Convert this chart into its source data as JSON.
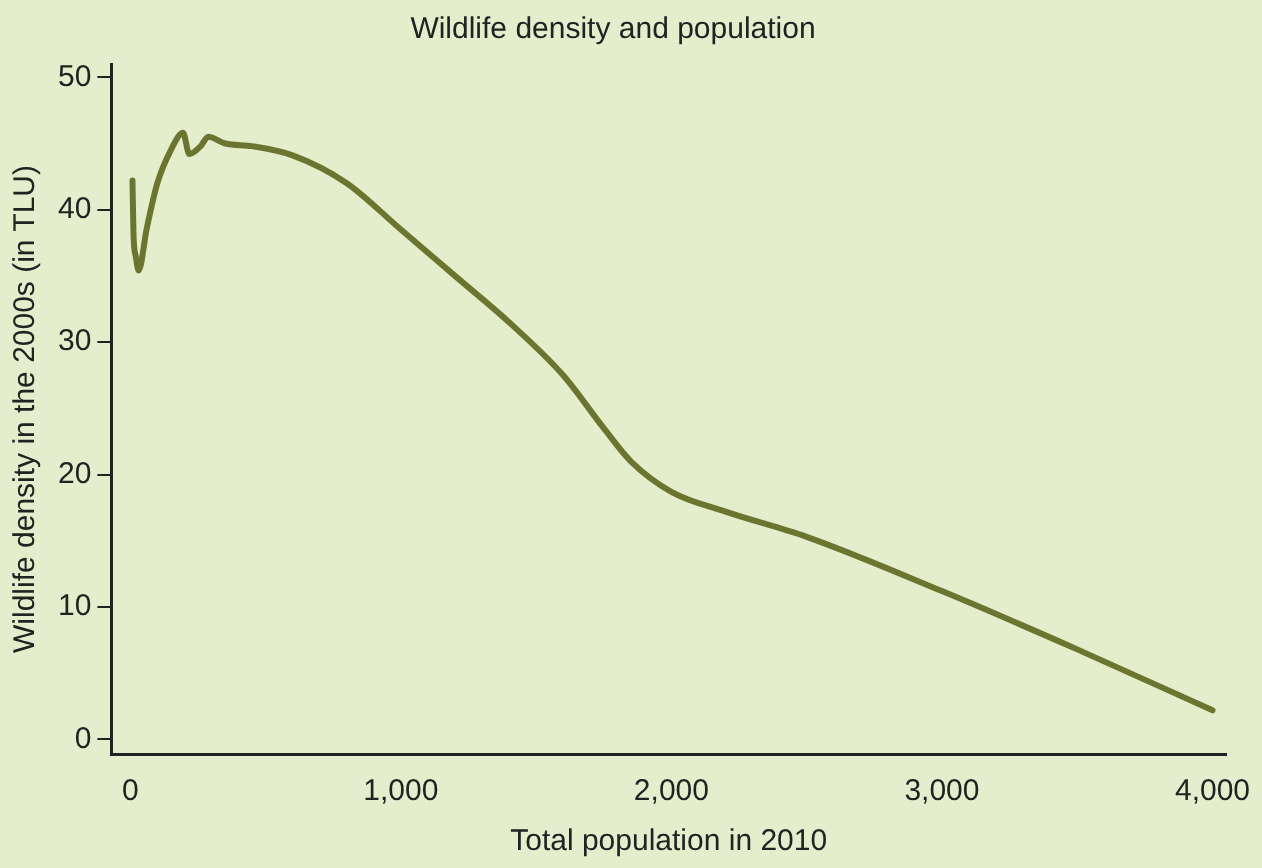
{
  "chart_data": {
    "type": "line",
    "title": "Wildlife density and population",
    "xlabel": "Total population in 2010",
    "ylabel": "Wildlife density in the 2000s (in TLU)",
    "x": [
      8,
      12,
      20,
      31,
      60,
      100,
      150,
      195,
      218,
      260,
      288,
      351,
      450,
      600,
      800,
      1000,
      1200,
      1400,
      1600,
      1750,
      1850,
      2000,
      2200,
      2500,
      3000,
      3500,
      4000
    ],
    "series": [
      {
        "color": "#6b7530",
        "values": [
          42.2,
          38,
          36.5,
          35.4,
          38.5,
          42,
          44.5,
          45.8,
          44.2,
          44.8,
          45.5,
          45,
          44.8,
          44.1,
          42,
          38.5,
          35,
          31.5,
          27.5,
          23.5,
          21,
          18.7,
          17.2,
          15.3,
          11.2,
          6.8,
          2.2
        ]
      }
    ],
    "xlim": [
      -70,
      4050
    ],
    "ylim": [
      -1.1,
      51
    ],
    "xticks": [
      {
        "value": 0,
        "label": "0"
      },
      {
        "value": 1000,
        "label": "1,000"
      },
      {
        "value": 2000,
        "label": "2,000"
      },
      {
        "value": 3000,
        "label": "3,000"
      },
      {
        "value": 4000,
        "label": "4,000"
      }
    ],
    "yticks": [
      0,
      10,
      20,
      30,
      40,
      50
    ],
    "grid": false,
    "legend": false,
    "marker": "none",
    "line_style": "solid"
  }
}
